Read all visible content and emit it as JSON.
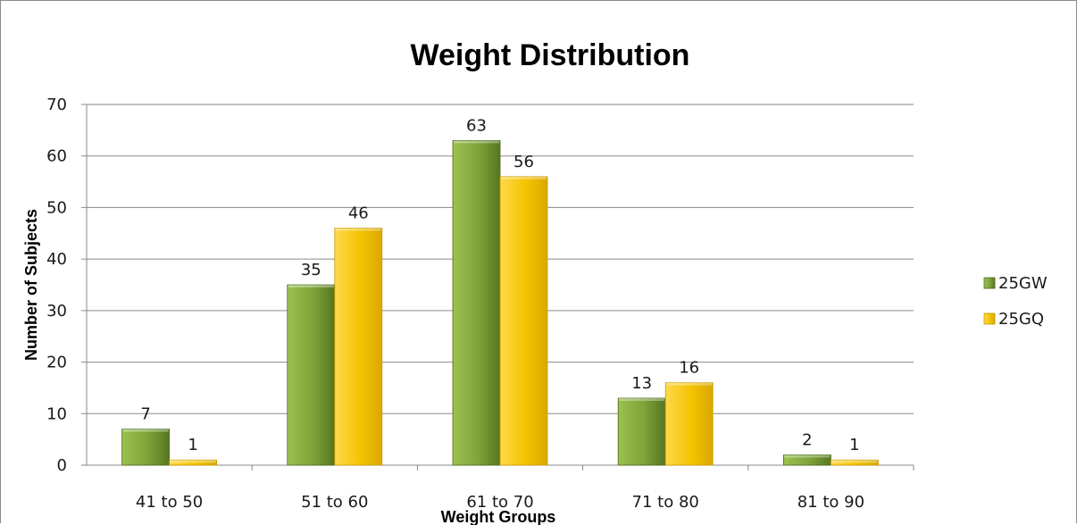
{
  "chart_data": {
    "type": "bar",
    "title": "Weight Distribution",
    "xlabel": "Weight Groups",
    "ylabel": "Number of Subjects",
    "categories": [
      "41 to 50",
      "51 to 60",
      "61 to 70",
      "71 to 80",
      "81 to 90"
    ],
    "series": [
      {
        "name": "25GW",
        "values": [
          7,
          35,
          63,
          13,
          2
        ],
        "color": "#7da33a"
      },
      {
        "name": "25GQ",
        "values": [
          1,
          46,
          56,
          16,
          1
        ],
        "color": "#f2c200"
      }
    ],
    "ylim": [
      0,
      70
    ],
    "yticks": [
      0,
      10,
      20,
      30,
      40,
      50,
      60,
      70
    ],
    "grid": true,
    "legend": "right"
  }
}
